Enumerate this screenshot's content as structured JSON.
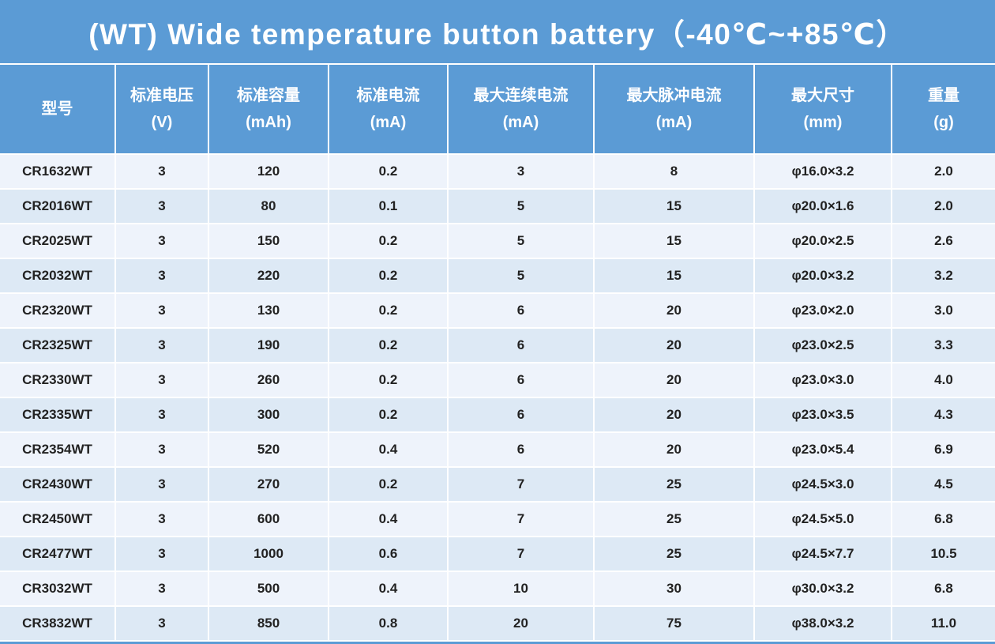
{
  "title": "(WT) Wide temperature button battery（-40℃~+85℃）",
  "colors": {
    "header_bg": "#5b9bd5",
    "row_light": "#eef3fb",
    "row_dark": "#dde9f5"
  },
  "columns": [
    {
      "name": "型号",
      "unit": ""
    },
    {
      "name": "标准电压",
      "unit": "(V)"
    },
    {
      "name": "标准容量",
      "unit": "(mAh)"
    },
    {
      "name": "标准电流",
      "unit": "(mA)"
    },
    {
      "name": "最大连续电流",
      "unit": "(mA)"
    },
    {
      "name": "最大脉冲电流",
      "unit": "(mA)"
    },
    {
      "name": "最大尺寸",
      "unit": "(mm)"
    },
    {
      "name": "重量",
      "unit": "(g)"
    }
  ],
  "rows": [
    [
      "CR1632WT",
      "3",
      "120",
      "0.2",
      "3",
      "8",
      "φ16.0×3.2",
      "2.0"
    ],
    [
      "CR2016WT",
      "3",
      "80",
      "0.1",
      "5",
      "15",
      "φ20.0×1.6",
      "2.0"
    ],
    [
      "CR2025WT",
      "3",
      "150",
      "0.2",
      "5",
      "15",
      "φ20.0×2.5",
      "2.6"
    ],
    [
      "CR2032WT",
      "3",
      "220",
      "0.2",
      "5",
      "15",
      "φ20.0×3.2",
      "3.2"
    ],
    [
      "CR2320WT",
      "3",
      "130",
      "0.2",
      "6",
      "20",
      "φ23.0×2.0",
      "3.0"
    ],
    [
      "CR2325WT",
      "3",
      "190",
      "0.2",
      "6",
      "20",
      "φ23.0×2.5",
      "3.3"
    ],
    [
      "CR2330WT",
      "3",
      "260",
      "0.2",
      "6",
      "20",
      "φ23.0×3.0",
      "4.0"
    ],
    [
      "CR2335WT",
      "3",
      "300",
      "0.2",
      "6",
      "20",
      "φ23.0×3.5",
      "4.3"
    ],
    [
      "CR2354WT",
      "3",
      "520",
      "0.4",
      "6",
      "20",
      "φ23.0×5.4",
      "6.9"
    ],
    [
      "CR2430WT",
      "3",
      "270",
      "0.2",
      "7",
      "25",
      "φ24.5×3.0",
      "4.5"
    ],
    [
      "CR2450WT",
      "3",
      "600",
      "0.4",
      "7",
      "25",
      "φ24.5×5.0",
      "6.8"
    ],
    [
      "CR2477WT",
      "3",
      "1000",
      "0.6",
      "7",
      "25",
      "φ24.5×7.7",
      "10.5"
    ],
    [
      "CR3032WT",
      "3",
      "500",
      "0.4",
      "10",
      "30",
      "φ30.0×3.2",
      "6.8"
    ],
    [
      "CR3832WT",
      "3",
      "850",
      "0.8",
      "20",
      "75",
      "φ38.0×3.2",
      "11.0"
    ]
  ]
}
